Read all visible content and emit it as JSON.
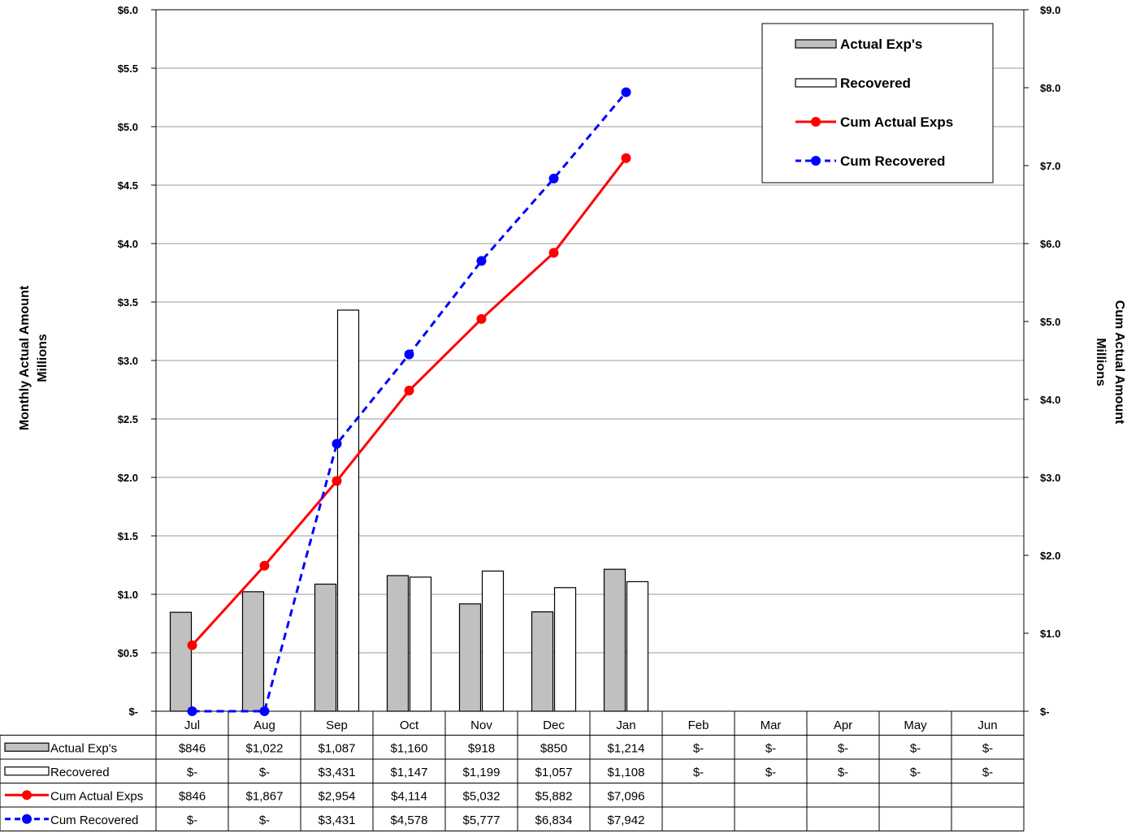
{
  "chart_data": {
    "type": "bar",
    "categories": [
      "Jul",
      "Aug",
      "Sep",
      "Oct",
      "Nov",
      "Dec",
      "Jan",
      "Feb",
      "Mar",
      "Apr",
      "May",
      "Jun"
    ],
    "y_left": {
      "label_line1": "Monthly Actual Amount",
      "label_line2": "Millions",
      "range": [
        0,
        6.0
      ],
      "ticks": [
        "$-",
        "$0.5",
        "$1.0",
        "$1.5",
        "$2.0",
        "$2.5",
        "$3.0",
        "$3.5",
        "$4.0",
        "$4.5",
        "$5.0",
        "$5.5",
        "$6.0"
      ]
    },
    "y_right": {
      "label_line1": "Cum Actual Amount",
      "label_line2": "Millions",
      "range": [
        0,
        9.0
      ],
      "ticks": [
        "$-",
        "$1.0",
        "$2.0",
        "$3.0",
        "$4.0",
        "$5.0",
        "$6.0",
        "$7.0",
        "$8.0",
        "$9.0"
      ]
    },
    "grid": "horizontal",
    "legend_position": "top-right",
    "series": [
      {
        "name": "Actual Exp's",
        "kind": "bar",
        "axis": "left",
        "color": "#c0c0c0",
        "values": [
          0.846,
          1.022,
          1.087,
          1.16,
          0.918,
          0.85,
          1.214,
          0,
          0,
          0,
          0,
          0
        ],
        "table_values": [
          "$846",
          "$1,022",
          "$1,087",
          "$1,160",
          "$918",
          "$850",
          "$1,214",
          "$-",
          "$-",
          "$-",
          "$-",
          "$-"
        ]
      },
      {
        "name": "Recovered",
        "kind": "bar",
        "axis": "left",
        "color": "#ffffff",
        "values": [
          0,
          0,
          3.431,
          1.147,
          1.199,
          1.057,
          1.108,
          0,
          0,
          0,
          0,
          0
        ],
        "table_values": [
          "$-",
          "$-",
          "$3,431",
          "$1,147",
          "$1,199",
          "$1,057",
          "$1,108",
          "$-",
          "$-",
          "$-",
          "$-",
          "$-"
        ]
      },
      {
        "name": "Cum Actual Exps",
        "kind": "line",
        "axis": "right",
        "color": "#ff0000",
        "dashed": false,
        "values": [
          0.846,
          1.867,
          2.954,
          4.114,
          5.032,
          5.882,
          7.096,
          null,
          null,
          null,
          null,
          null
        ],
        "table_values": [
          "$846",
          "$1,867",
          "$2,954",
          "$4,114",
          "$5,032",
          "$5,882",
          "$7,096",
          "",
          "",
          "",
          "",
          ""
        ]
      },
      {
        "name": "Cum Recovered",
        "kind": "line",
        "axis": "right",
        "color": "#0000ff",
        "dashed": true,
        "values": [
          0,
          0,
          3.431,
          4.578,
          5.777,
          6.834,
          7.942,
          null,
          null,
          null,
          null,
          null
        ],
        "table_values": [
          "$-",
          "$-",
          "$3,431",
          "$4,578",
          "$5,777",
          "$6,834",
          "$7,942",
          "",
          "",
          "",
          "",
          ""
        ]
      }
    ]
  }
}
